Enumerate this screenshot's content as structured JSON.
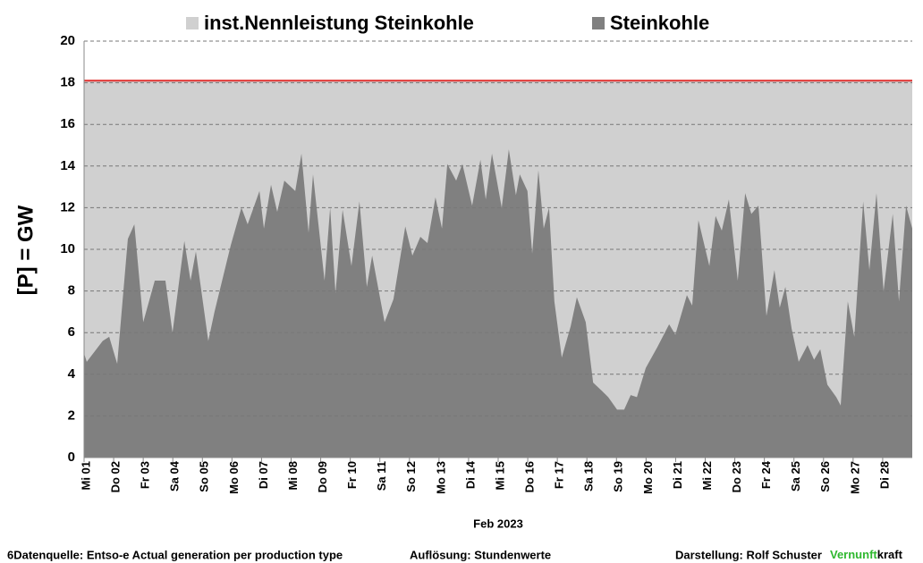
{
  "chart_data": {
    "type": "area",
    "y_label": "[P]  = GW",
    "x_label": "Feb 2023",
    "xlim": [
      1,
      29
    ],
    "xticks": [
      {
        "value": 1,
        "label": "Mi 01"
      },
      {
        "value": 2,
        "label": "Do 02"
      },
      {
        "value": 3,
        "label": "Fr 03"
      },
      {
        "value": 4,
        "label": "Sa 04"
      },
      {
        "value": 5,
        "label": "So 05"
      },
      {
        "value": 6,
        "label": "Mo 06"
      },
      {
        "value": 7,
        "label": "Di 07"
      },
      {
        "value": 8,
        "label": "Mi 08"
      },
      {
        "value": 9,
        "label": "Do 09"
      },
      {
        "value": 10,
        "label": "Fr 10"
      },
      {
        "value": 11,
        "label": "Sa 11"
      },
      {
        "value": 12,
        "label": "So 12"
      },
      {
        "value": 13,
        "label": "Mo 13"
      },
      {
        "value": 14,
        "label": "Di 14"
      },
      {
        "value": 15,
        "label": "Mi 15"
      },
      {
        "value": 16,
        "label": "Do 16"
      },
      {
        "value": 17,
        "label": "Fr 17"
      },
      {
        "value": 18,
        "label": "Sa 18"
      },
      {
        "value": 19,
        "label": "So 19"
      },
      {
        "value": 20,
        "label": "Mo 20"
      },
      {
        "value": 21,
        "label": "Di 21"
      },
      {
        "value": 22,
        "label": "Mi 22"
      },
      {
        "value": 23,
        "label": "Do 23"
      },
      {
        "value": 24,
        "label": "Fr 24"
      },
      {
        "value": 25,
        "label": "Sa 25"
      },
      {
        "value": 26,
        "label": "So 26"
      },
      {
        "value": 27,
        "label": "Mo 27"
      },
      {
        "value": 28,
        "label": "Di 28"
      }
    ],
    "ylim": [
      0,
      20
    ],
    "yticks": [
      0,
      2,
      4,
      6,
      8,
      10,
      12,
      14,
      16,
      18,
      20
    ],
    "grid": true,
    "x": [
      1.0,
      1.09,
      1.63,
      1.85,
      2.12,
      2.48,
      2.7,
      3.0,
      3.39,
      3.75,
      3.99,
      4.39,
      4.6,
      4.78,
      5.2,
      5.41,
      5.96,
      6.32,
      6.53,
      6.93,
      7.08,
      7.32,
      7.53,
      7.77,
      8.14,
      8.35,
      8.59,
      8.74,
      9.13,
      9.32,
      9.5,
      9.74,
      10.04,
      10.31,
      10.56,
      10.74,
      11.16,
      11.46,
      11.86,
      12.1,
      12.37,
      12.61,
      12.88,
      13.1,
      13.28,
      13.58,
      13.79,
      14.12,
      14.4,
      14.58,
      14.79,
      15.12,
      15.36,
      15.6,
      15.73,
      15.99,
      16.15,
      16.36,
      16.54,
      16.72,
      16.9,
      17.15,
      17.45,
      17.66,
      17.96,
      18.21,
      18.51,
      18.72,
      19.02,
      19.26,
      19.48,
      19.69,
      19.99,
      20.38,
      20.78,
      20.99,
      21.38,
      21.56,
      21.77,
      22.14,
      22.35,
      22.56,
      22.8,
      23.1,
      23.35,
      23.56,
      23.8,
      24.07,
      24.34,
      24.52,
      24.71,
      24.92,
      25.16,
      25.46,
      25.68,
      25.89,
      26.13,
      26.43,
      26.58,
      26.82,
      27.04,
      27.34,
      27.55,
      27.79,
      28.03,
      28.34,
      28.55,
      28.79,
      29.0
    ],
    "series": [
      {
        "name": "inst.Nennleistung Steinkohle",
        "color": "#d0d0d0",
        "line_color": "#e0302f",
        "x": [
          1,
          29
        ],
        "values": [
          18.1,
          18.1
        ]
      },
      {
        "name": "Steinkohle",
        "color": "#808080",
        "values": [
          5.0,
          4.6,
          5.6,
          5.8,
          4.5,
          10.5,
          11.2,
          6.5,
          8.5,
          8.5,
          6.0,
          10.4,
          8.5,
          9.9,
          5.6,
          7.0,
          10.2,
          12.0,
          11.2,
          12.8,
          11.0,
          13.1,
          11.8,
          13.3,
          12.8,
          14.6,
          10.8,
          13.6,
          8.5,
          12.0,
          7.9,
          11.9,
          9.2,
          12.3,
          8.2,
          9.7,
          6.5,
          7.6,
          11.1,
          9.7,
          10.6,
          10.3,
          12.5,
          11.0,
          14.1,
          13.3,
          14.1,
          12.1,
          14.3,
          12.4,
          14.6,
          12.0,
          14.8,
          12.6,
          13.6,
          12.8,
          9.8,
          13.8,
          11.0,
          12.0,
          7.5,
          4.8,
          6.3,
          7.7,
          6.5,
          3.6,
          3.2,
          2.9,
          2.3,
          2.3,
          3.0,
          2.9,
          4.3,
          5.3,
          6.4,
          5.9,
          7.8,
          7.3,
          11.4,
          9.2,
          11.6,
          10.9,
          12.4,
          8.5,
          12.7,
          11.7,
          12.1,
          6.8,
          9.0,
          7.2,
          8.2,
          6.2,
          4.6,
          5.4,
          4.7,
          5.2,
          3.5,
          2.9,
          2.5,
          7.5,
          5.8,
          12.3,
          9.0,
          12.7,
          8.0,
          11.7,
          7.5,
          12.1,
          11.0
        ]
      }
    ],
    "footer": {
      "source": "6Datenquelle: Entso-e  Actual generation per production type",
      "resolution": "Auflösung: Stundenwerte",
      "author": "Darstellung:  Rolf Schuster",
      "brand_1": "Vernunft",
      "brand_2": "kraft"
    }
  }
}
